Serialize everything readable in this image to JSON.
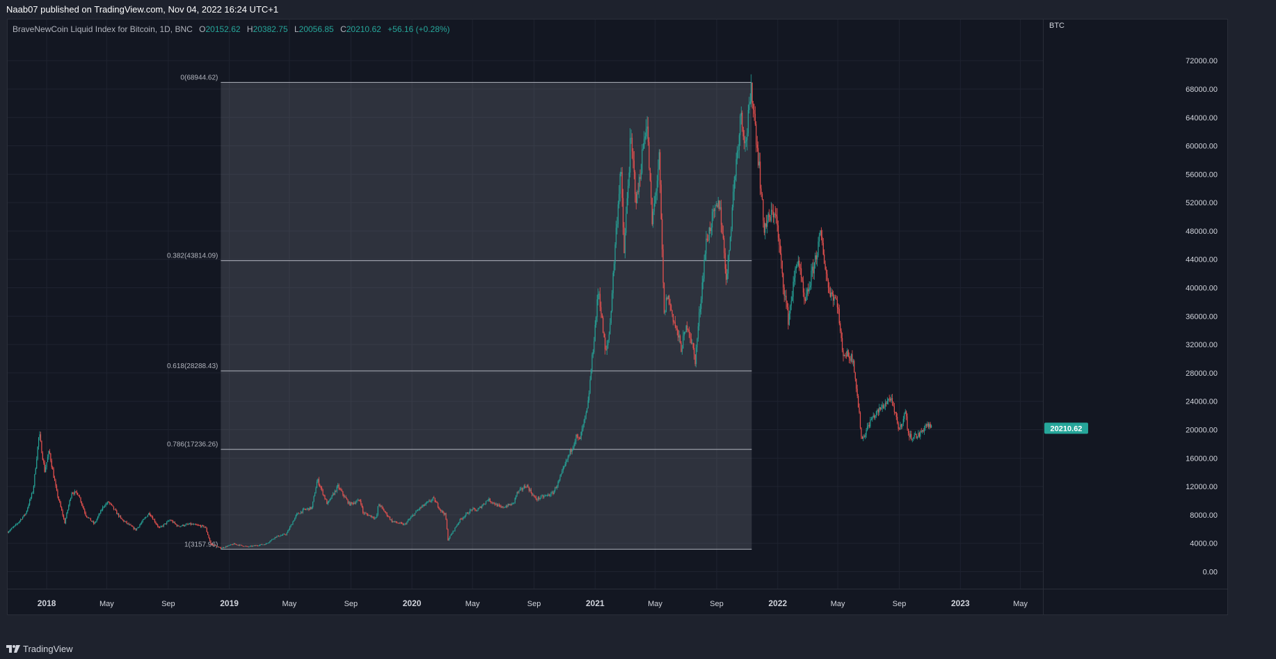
{
  "header": {
    "publisher": "Naab07 published on TradingView.com, Nov 04, 2022 16:24 UTC+1"
  },
  "footer": {
    "brand": "TradingView"
  },
  "legend": {
    "symbol": "BraveNewCoin Liquid Index for Bitcoin, 1D, BNC",
    "open_label": "O",
    "open": "20152.62",
    "high_label": "H",
    "high": "20382.75",
    "low_label": "L",
    "low": "20056.85",
    "close_label": "C",
    "close": "20210.62",
    "change": "+56.16 (+0.28%)"
  },
  "colors": {
    "up": "#26a69a",
    "down": "#ef5350",
    "last_price_bg": "#26a69a",
    "fib_fill": "rgba(120,123,134,0.28)",
    "fib_line": "#b2b5be"
  },
  "chart_data": {
    "type": "candlestick",
    "title": "BraveNewCoin Liquid Index for Bitcoin, 1D, BNC",
    "currency_label": "BTC",
    "y_ticks": [
      0,
      4000,
      8000,
      12000,
      16000,
      20000,
      24000,
      28000,
      32000,
      36000,
      40000,
      44000,
      48000,
      52000,
      56000,
      60000,
      64000,
      68000,
      72000
    ],
    "y_tick_labels": [
      "0.00",
      "4000.00",
      "8000.00",
      "12000.00",
      "16000.00",
      "20000.00",
      "24000.00",
      "28000.00",
      "32000.00",
      "36000.00",
      "40000.00",
      "44000.00",
      "48000.00",
      "52000.00",
      "56000.00",
      "60000.00",
      "64000.00",
      "68000.00",
      "72000.00"
    ],
    "ylim": [
      -2400,
      77800
    ],
    "x_range": [
      "2017-10-15",
      "2023-06-15"
    ],
    "x_ticks": [
      {
        "date": "2018-01-01",
        "label": "2018",
        "bold": true
      },
      {
        "date": "2018-05-01",
        "label": "May",
        "bold": false
      },
      {
        "date": "2018-09-01",
        "label": "Sep",
        "bold": false
      },
      {
        "date": "2019-01-01",
        "label": "2019",
        "bold": true
      },
      {
        "date": "2019-05-01",
        "label": "May",
        "bold": false
      },
      {
        "date": "2019-09-01",
        "label": "Sep",
        "bold": false
      },
      {
        "date": "2020-01-01",
        "label": "2020",
        "bold": true
      },
      {
        "date": "2020-05-01",
        "label": "May",
        "bold": false
      },
      {
        "date": "2020-09-01",
        "label": "Sep",
        "bold": false
      },
      {
        "date": "2021-01-01",
        "label": "2021",
        "bold": true
      },
      {
        "date": "2021-05-01",
        "label": "May",
        "bold": false
      },
      {
        "date": "2021-09-01",
        "label": "Sep",
        "bold": false
      },
      {
        "date": "2022-01-01",
        "label": "2022",
        "bold": true
      },
      {
        "date": "2022-05-01",
        "label": "May",
        "bold": false
      },
      {
        "date": "2022-09-01",
        "label": "Sep",
        "bold": false
      },
      {
        "date": "2023-01-01",
        "label": "2023",
        "bold": true
      },
      {
        "date": "2023-05-01",
        "label": "May",
        "bold": false
      }
    ],
    "price_path": [
      [
        "2017-10-15",
        5600
      ],
      [
        "2017-11-01",
        6600
      ],
      [
        "2017-11-20",
        8200
      ],
      [
        "2017-12-05",
        11500
      ],
      [
        "2017-12-17",
        19500
      ],
      [
        "2017-12-28",
        14200
      ],
      [
        "2018-01-06",
        17000
      ],
      [
        "2018-01-20",
        11500
      ],
      [
        "2018-02-06",
        6900
      ],
      [
        "2018-02-20",
        11200
      ],
      [
        "2018-03-05",
        11000
      ],
      [
        "2018-03-20",
        8000
      ],
      [
        "2018-04-06",
        6700
      ],
      [
        "2018-04-25",
        9300
      ],
      [
        "2018-05-05",
        9800
      ],
      [
        "2018-05-30",
        7400
      ],
      [
        "2018-06-28",
        5900
      ],
      [
        "2018-07-25",
        8300
      ],
      [
        "2018-08-14",
        6100
      ],
      [
        "2018-09-05",
        7300
      ],
      [
        "2018-09-20",
        6400
      ],
      [
        "2018-10-15",
        6700
      ],
      [
        "2018-11-14",
        6300
      ],
      [
        "2018-11-25",
        3900
      ],
      [
        "2018-12-15",
        3300
      ],
      [
        "2019-01-10",
        3900
      ],
      [
        "2019-02-07",
        3500
      ],
      [
        "2019-03-15",
        3900
      ],
      [
        "2019-04-03",
        4900
      ],
      [
        "2019-04-25",
        5300
      ],
      [
        "2019-05-15",
        8000
      ],
      [
        "2019-05-30",
        8700
      ],
      [
        "2019-06-15",
        9000
      ],
      [
        "2019-06-26",
        13000
      ],
      [
        "2019-07-16",
        9500
      ],
      [
        "2019-08-06",
        12000
      ],
      [
        "2019-08-29",
        9500
      ],
      [
        "2019-09-20",
        10100
      ],
      [
        "2019-09-25",
        8300
      ],
      [
        "2019-10-22",
        7500
      ],
      [
        "2019-10-26",
        9600
      ],
      [
        "2019-11-22",
        7100
      ],
      [
        "2019-12-17",
        6600
      ],
      [
        "2020-01-14",
        8800
      ],
      [
        "2020-02-13",
        10300
      ],
      [
        "2020-02-28",
        8600
      ],
      [
        "2020-03-08",
        8000
      ],
      [
        "2020-03-13",
        4500
      ],
      [
        "2020-04-06",
        7300
      ],
      [
        "2020-04-30",
        8800
      ],
      [
        "2020-05-10",
        8600
      ],
      [
        "2020-06-01",
        10200
      ],
      [
        "2020-06-27",
        9000
      ],
      [
        "2020-07-22",
        9600
      ],
      [
        "2020-07-28",
        11000
      ],
      [
        "2020-08-17",
        12200
      ],
      [
        "2020-09-04",
        10200
      ],
      [
        "2020-10-08",
        11000
      ],
      [
        "2020-10-21",
        12800
      ],
      [
        "2020-11-05",
        15600
      ],
      [
        "2020-11-24",
        19000
      ],
      [
        "2020-12-01",
        18500
      ],
      [
        "2020-12-17",
        23000
      ],
      [
        "2021-01-08",
        40000
      ],
      [
        "2021-01-22",
        30500
      ],
      [
        "2021-01-30",
        34000
      ],
      [
        "2021-02-10",
        46000
      ],
      [
        "2021-02-21",
        57000
      ],
      [
        "2021-02-28",
        45000
      ],
      [
        "2021-03-13",
        61000
      ],
      [
        "2021-03-25",
        52000
      ],
      [
        "2021-04-14",
        64000
      ],
      [
        "2021-04-25",
        49000
      ],
      [
        "2021-05-09",
        58000
      ],
      [
        "2021-05-19",
        36000
      ],
      [
        "2021-05-25",
        39000
      ],
      [
        "2021-06-22",
        31500
      ],
      [
        "2021-07-05",
        35000
      ],
      [
        "2021-07-20",
        29800
      ],
      [
        "2021-08-10",
        46000
      ],
      [
        "2021-08-22",
        49500
      ],
      [
        "2021-09-07",
        52000
      ],
      [
        "2021-09-21",
        41000
      ],
      [
        "2021-10-06",
        55000
      ],
      [
        "2021-10-20",
        65000
      ],
      [
        "2021-10-28",
        60000
      ],
      [
        "2021-11-10",
        68000
      ],
      [
        "2021-11-25",
        57000
      ],
      [
        "2021-12-04",
        48500
      ],
      [
        "2021-12-27",
        51000
      ],
      [
        "2022-01-10",
        41800
      ],
      [
        "2022-01-22",
        35500
      ],
      [
        "2022-02-10",
        44500
      ],
      [
        "2022-02-24",
        37500
      ],
      [
        "2022-03-28",
        47500
      ],
      [
        "2022-04-12",
        40000
      ],
      [
        "2022-04-30",
        38000
      ],
      [
        "2022-05-10",
        31000
      ],
      [
        "2022-06-01",
        30000
      ],
      [
        "2022-06-13",
        22000
      ],
      [
        "2022-06-18",
        18500
      ],
      [
        "2022-07-07",
        21500
      ],
      [
        "2022-08-14",
        24500
      ],
      [
        "2022-09-01",
        20000
      ],
      [
        "2022-09-13",
        22500
      ],
      [
        "2022-09-20",
        19000
      ],
      [
        "2022-10-10",
        19200
      ],
      [
        "2022-10-26",
        20800
      ],
      [
        "2022-11-04",
        20210
      ]
    ],
    "fib_retracement": {
      "start_date": "2018-12-15",
      "end_date": "2021-11-10",
      "levels": [
        {
          "ratio": "0",
          "price": 68944.62,
          "label": "0(68944.62)"
        },
        {
          "ratio": "0.382",
          "price": 43814.09,
          "label": "0.382(43814.09)"
        },
        {
          "ratio": "0.618",
          "price": 28288.43,
          "label": "0.618(28288.43)"
        },
        {
          "ratio": "0.786",
          "price": 17236.26,
          "label": "0.786(17236.26)"
        },
        {
          "ratio": "1",
          "price": 3157.96,
          "label": "1(3157.96)"
        }
      ]
    },
    "last_price": {
      "value": 20210.62,
      "label": "20210.62"
    }
  }
}
